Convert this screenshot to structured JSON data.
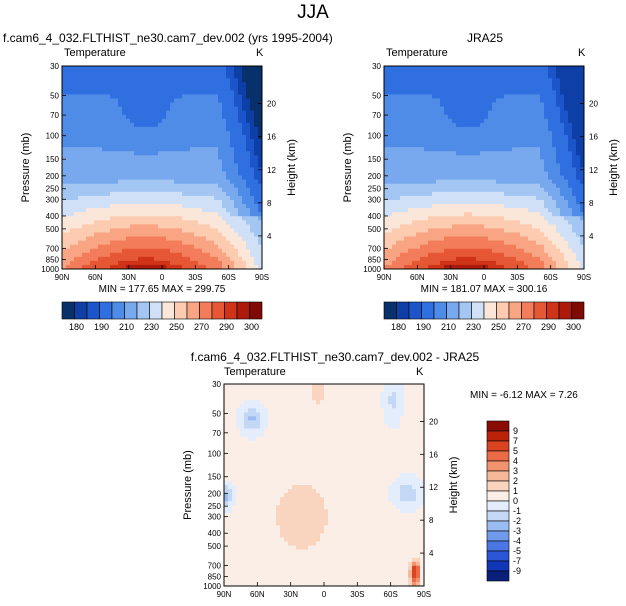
{
  "figure": {
    "title": "JJA",
    "panels": [
      {
        "title": "f.cam6_4_032.FLTHIST_ne30.cam7_dev.002 (yrs 1995-2004)",
        "variable": "Temperature",
        "units": "K",
        "min_label": "MIN = 177.65   MAX = 299.75"
      },
      {
        "title": "JRA25",
        "variable": "Temperature",
        "units": "K",
        "min_label": "MIN = 181.07   MAX = 300.16"
      },
      {
        "title": "f.cam6_4_032.FLTHIST_ne30.cam7_dev.002 - JRA25",
        "variable": "Temperature",
        "units": "K",
        "min_label": "MIN = -6.12   MAX =  7.26"
      }
    ]
  },
  "colors": {
    "abs_scale": [
      "#08306b",
      "#0d3fa6",
      "#1b55c9",
      "#2f6fe0",
      "#4f8ce8",
      "#78a9ee",
      "#a4c6f3",
      "#cfe0f7",
      "#fbe6da",
      "#fccbb0",
      "#f9a584",
      "#f37d5b",
      "#e55735",
      "#cf3318",
      "#ad1a0c",
      "#7f0a04"
    ],
    "diff_scale": [
      "#08207a",
      "#1236b8",
      "#2a55d6",
      "#4a77e4",
      "#709aec",
      "#9bbcf2",
      "#c4d8f6",
      "#e3edfb",
      "#fbeee6",
      "#f9d5c0",
      "#f6b899",
      "#f29370",
      "#ea6b45",
      "#da4421",
      "#bb2309",
      "#8a0c02"
    ]
  },
  "chart_data": [
    {
      "type": "heatmap",
      "title": "f.cam6_4_032.FLTHIST_ne30.cam7_dev.002 (yrs 1995-2004)",
      "subtitle": "Temperature",
      "units": "K",
      "ylabel": "Pressure (mb)",
      "ylabel_right": "Height (km)",
      "x_ticks": [
        "90N",
        "60N",
        "30N",
        "0",
        "30S",
        "60S",
        "90S"
      ],
      "y_ticks": [
        "30",
        "50",
        "70",
        "100",
        "150",
        "200",
        "250",
        "300",
        "400",
        "500",
        "700",
        "850",
        "1000"
      ],
      "y_ticks_right": [
        "20",
        "16",
        "12",
        "8",
        "4"
      ],
      "min": 177.65,
      "max": 299.75,
      "colorbar_labels": [
        "180",
        "190",
        "210",
        "230",
        "250",
        "270",
        "290",
        "300"
      ]
    },
    {
      "type": "heatmap",
      "title": "JRA25",
      "subtitle": "Temperature",
      "units": "K",
      "ylabel": "Pressure (mb)",
      "ylabel_right": "Height (km)",
      "x_ticks": [
        "90N",
        "60N",
        "30N",
        "0",
        "30S",
        "60S",
        "90S"
      ],
      "y_ticks": [
        "30",
        "50",
        "70",
        "100",
        "150",
        "200",
        "250",
        "300",
        "400",
        "500",
        "700",
        "850",
        "1000"
      ],
      "y_ticks_right": [
        "20",
        "16",
        "12",
        "8",
        "4"
      ],
      "min": 181.07,
      "max": 300.16,
      "colorbar_labels": [
        "180",
        "190",
        "210",
        "230",
        "250",
        "270",
        "290",
        "300"
      ]
    },
    {
      "type": "heatmap",
      "title": "f.cam6_4_032.FLTHIST_ne30.cam7_dev.002 - JRA25",
      "subtitle": "Temperature",
      "units": "K",
      "ylabel": "Pressure (mb)",
      "ylabel_right": "Height (km)",
      "x_ticks": [
        "90N",
        "60N",
        "30N",
        "0",
        "30S",
        "60S",
        "90S"
      ],
      "y_ticks": [
        "30",
        "50",
        "70",
        "100",
        "150",
        "200",
        "250",
        "300",
        "400",
        "500",
        "700",
        "850",
        "1000"
      ],
      "y_ticks_right": [
        "20",
        "16",
        "12",
        "8",
        "4"
      ],
      "min": -6.12,
      "max": 7.26,
      "colorbar_labels": [
        "9",
        "7",
        "5",
        "4",
        "3",
        "2",
        "1",
        "0",
        "-1",
        "-2",
        "-3",
        "-4",
        "-5",
        "-7",
        "-9"
      ]
    }
  ]
}
